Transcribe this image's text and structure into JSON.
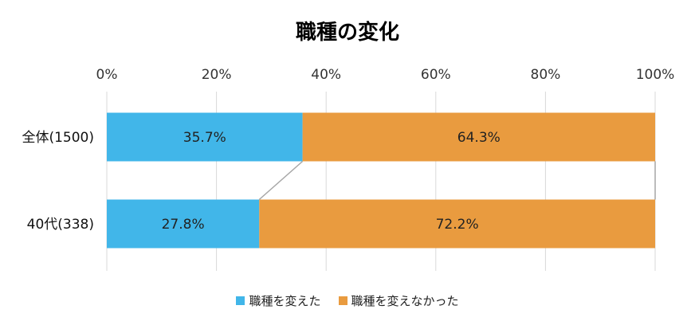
{
  "chart_data": {
    "type": "bar",
    "orientation": "horizontal",
    "stacked": true,
    "title": "職種の変化",
    "categories": [
      "全体(1500)",
      "40代(338)"
    ],
    "series": [
      {
        "name": "職種を変えた",
        "values": [
          35.7,
          27.8
        ],
        "labels": [
          "35.7%",
          "27.8%"
        ],
        "color": "#41B6E9"
      },
      {
        "name": "職種を変えなかった",
        "values": [
          64.3,
          72.2
        ],
        "labels": [
          "64.3%",
          "72.2%"
        ],
        "color": "#E99B3F"
      }
    ],
    "xlim": [
      0,
      100
    ],
    "xticks": [
      "0%",
      "20%",
      "40%",
      "60%",
      "80%",
      "100%"
    ],
    "grid": true,
    "legend_position": "bottom",
    "series_lines": true
  }
}
